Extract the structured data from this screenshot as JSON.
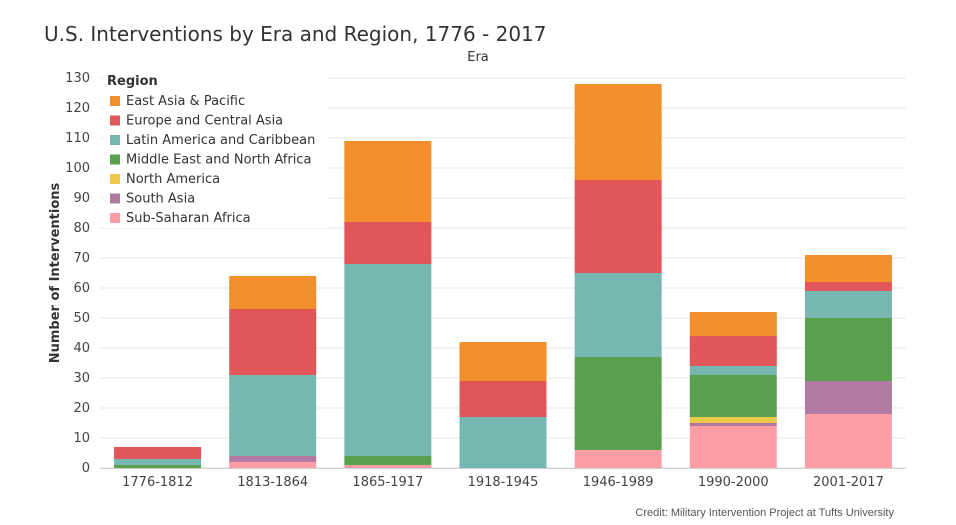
{
  "chart_data": {
    "type": "bar",
    "stacked": true,
    "title": "U.S. Interventions by Era and Region, 1776 - 2017",
    "facet_label": "Era",
    "xlabel": "",
    "ylabel": "Number of Interventions",
    "ylim": [
      0,
      130
    ],
    "yticks": [
      0,
      10,
      20,
      30,
      40,
      50,
      60,
      70,
      80,
      90,
      100,
      110,
      120,
      130
    ],
    "grid": true,
    "legend_title": "Region",
    "legend_position": "top-left",
    "categories": [
      "1776-1812",
      "1813-1864",
      "1865-1917",
      "1918-1945",
      "1946-1989",
      "1990-2000",
      "2001-2017"
    ],
    "series": [
      {
        "name": "Sub-Saharan Africa",
        "color": "#FF9DA7",
        "values": [
          0,
          2,
          1,
          0,
          6,
          14,
          18
        ]
      },
      {
        "name": "South Asia",
        "color": "#B07AA1",
        "values": [
          0,
          2,
          0,
          0,
          0,
          1,
          11
        ]
      },
      {
        "name": "North America",
        "color": "#EDC948",
        "values": [
          0,
          0,
          0,
          0,
          0,
          2,
          0
        ]
      },
      {
        "name": "Middle East and North Africa",
        "color": "#59A14F",
        "values": [
          1,
          0,
          3,
          0,
          31,
          14,
          21
        ]
      },
      {
        "name": "Latin America and Caribbean",
        "color": "#76B7B2",
        "values": [
          2,
          27,
          64,
          17,
          28,
          3,
          9
        ]
      },
      {
        "name": "Europe and Central Asia",
        "color": "#E15759",
        "values": [
          4,
          22,
          14,
          12,
          31,
          10,
          3
        ]
      },
      {
        "name": "East Asia & Pacific",
        "color": "#F28E2B",
        "values": [
          0,
          11,
          27,
          13,
          32,
          8,
          9
        ]
      }
    ]
  },
  "credit": "Credit: Military Intervention Project at Tufts University"
}
